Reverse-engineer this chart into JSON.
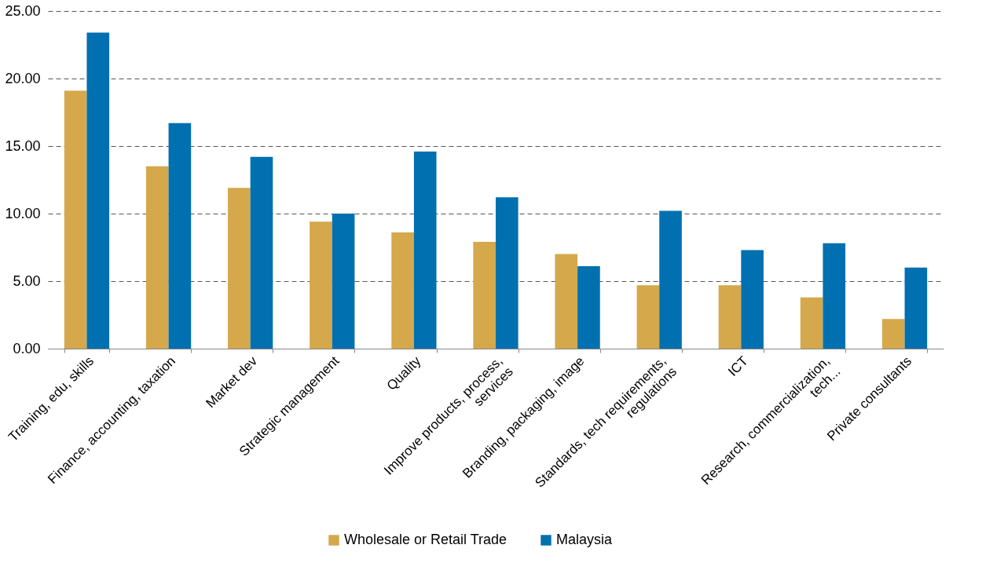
{
  "chart_data": {
    "type": "bar",
    "categories": [
      "Training, edu, skills",
      "Finance, accounting, taxation",
      "Market dev",
      "Strategic management",
      "Quality",
      "Improve products, process,\nservices",
      "Branding, packaging, image",
      "Standards, tech requirements,\nregulations",
      "ICT",
      "Research, commercialization,\ntech...",
      "Private consultants"
    ],
    "series": [
      {
        "name": "Wholesale or Retail Trade",
        "color": "#d4a84b",
        "values": [
          19.1,
          13.5,
          11.9,
          9.4,
          8.6,
          7.9,
          7.0,
          4.7,
          4.7,
          3.8,
          2.2
        ]
      },
      {
        "name": "Malaysia",
        "color": "#0070b0",
        "values": [
          23.4,
          16.7,
          14.2,
          10.0,
          14.6,
          11.2,
          6.1,
          10.2,
          7.3,
          7.8,
          6.0
        ]
      }
    ],
    "ylim": [
      0,
      25
    ],
    "yticks": [
      {
        "value": 0,
        "label": "0.00"
      },
      {
        "value": 5,
        "label": "5.00"
      },
      {
        "value": 10,
        "label": "10.00"
      },
      {
        "value": 15,
        "label": "15.00"
      },
      {
        "value": 20,
        "label": "20.00"
      },
      {
        "value": 25,
        "label": "25.00"
      }
    ],
    "grid": "y",
    "legend": "bottom"
  }
}
